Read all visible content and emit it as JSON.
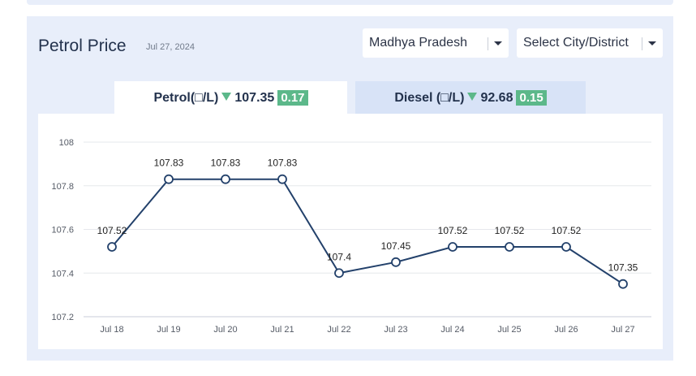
{
  "header": {
    "title": "Petrol Price",
    "date": "Jul 27, 2024"
  },
  "filters": {
    "state": "Madhya Pradesh",
    "city": "Select City/District"
  },
  "tabs": [
    {
      "label": "Petrol(□/L)",
      "price": "107.35",
      "change": "0.17",
      "direction": "down",
      "active": true
    },
    {
      "label": "Diesel (□/L)",
      "price": "92.68",
      "change": "0.15",
      "direction": "down",
      "active": false
    }
  ],
  "colors": {
    "line": "#23416b",
    "badge": "#5cb88a",
    "active_tab": "#ffffff",
    "inactive_tab": "#d8e3f7",
    "background": "#e8eefa"
  },
  "chart_data": {
    "type": "line",
    "x": [
      "Jul 18",
      "Jul 19",
      "Jul 20",
      "Jul 21",
      "Jul 22",
      "Jul 23",
      "Jul 24",
      "Jul 25",
      "Jul 26",
      "Jul 27"
    ],
    "values": [
      107.52,
      107.83,
      107.83,
      107.83,
      107.4,
      107.45,
      107.52,
      107.52,
      107.52,
      107.35
    ],
    "data_labels": [
      "107.52",
      "107.83",
      "107.83",
      "107.83",
      "107.4",
      "107.45",
      "107.52",
      "107.52",
      "107.52",
      "107.35"
    ],
    "yticks": [
      "107.2",
      "107.4",
      "107.6",
      "107.8",
      "108"
    ],
    "ylim": [
      107.2,
      108
    ],
    "grid": true,
    "legend": "none"
  }
}
